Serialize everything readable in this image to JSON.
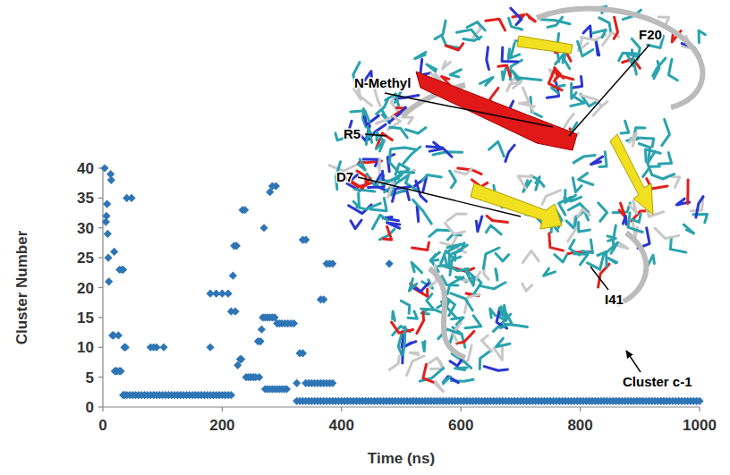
{
  "chart_data": {
    "type": "scatter",
    "x_label": "Time (ns)",
    "y_label": "Cluster Number",
    "color": "#2e75b6",
    "marker": "diamond",
    "grid": false,
    "xlim": [
      0,
      1000
    ],
    "xticks": [
      0,
      200,
      400,
      600,
      800,
      1000
    ],
    "ylim": [
      0,
      40
    ],
    "yticks": [
      0,
      5,
      10,
      15,
      20,
      25,
      30,
      35,
      40
    ],
    "annotations": [
      {
        "text": "N-Methyl"
      },
      {
        "text": "R5"
      },
      {
        "text": "D7"
      },
      {
        "text": "F20"
      },
      {
        "text": "I41"
      },
      {
        "text": "Cluster c-1"
      }
    ],
    "x": [
      3,
      5,
      6,
      7,
      8,
      9,
      10,
      13,
      14,
      16,
      18,
      19,
      20,
      22,
      24,
      26,
      28,
      28,
      30,
      32,
      34,
      36,
      38,
      40,
      48,
      34,
      36,
      40,
      45,
      50,
      55,
      60,
      65,
      70,
      75,
      80,
      85,
      90,
      95,
      100,
      105,
      110,
      115,
      120,
      125,
      130,
      135,
      140,
      145,
      150,
      155,
      160,
      165,
      170,
      175,
      180,
      185,
      190,
      195,
      200,
      205,
      210,
      215,
      80,
      85,
      90,
      102,
      180,
      180,
      190,
      200,
      210,
      215,
      218,
      220,
      224,
      222,
      226,
      230,
      232,
      234,
      238,
      240,
      244,
      248,
      252,
      256,
      260,
      264,
      262,
      266,
      270,
      268,
      272,
      276,
      280,
      284,
      288,
      272,
      276,
      280,
      284,
      288,
      292,
      296,
      300,
      304,
      308,
      280,
      284,
      290,
      292,
      296,
      300,
      305,
      310,
      315,
      320,
      325,
      330,
      335,
      335,
      340,
      340,
      345,
      350,
      355,
      360,
      365,
      365,
      370,
      370,
      375,
      380,
      375,
      380,
      385,
      385,
      480,
      325,
      330,
      335,
      340,
      345,
      350,
      355,
      360,
      365,
      370,
      375,
      380,
      385,
      390,
      395,
      400,
      405,
      410,
      415,
      420,
      425,
      430,
      435,
      440,
      445,
      450,
      455,
      460,
      465,
      470,
      475,
      480,
      485,
      490,
      495,
      500,
      505,
      510,
      515,
      520,
      525,
      530,
      535,
      540,
      545,
      550,
      555,
      560,
      565,
      570,
      575,
      580,
      585,
      590,
      595,
      600,
      605,
      610,
      615,
      620,
      625,
      630,
      635,
      640,
      645,
      650,
      655,
      660,
      665,
      670,
      675,
      680,
      685,
      690,
      695,
      700,
      705,
      710,
      715,
      720,
      725,
      730,
      735,
      740,
      745,
      750,
      755,
      760,
      765,
      770,
      775,
      780,
      785,
      790,
      795,
      800,
      805,
      810,
      815,
      820,
      825,
      830,
      835,
      840,
      845,
      850,
      855,
      860,
      865,
      870,
      875,
      880,
      885,
      890,
      895,
      900,
      905,
      910,
      915,
      920,
      925,
      930,
      935,
      940,
      945,
      950,
      955,
      960,
      965,
      970,
      975,
      980,
      985,
      990,
      995,
      1000
    ],
    "values": [
      40,
      31,
      32,
      34,
      29,
      25,
      21,
      39,
      38,
      12,
      12,
      26,
      6,
      6,
      6,
      12,
      6,
      23,
      6,
      23,
      23,
      10,
      10,
      35,
      35,
      2,
      2,
      2,
      2,
      2,
      2,
      2,
      2,
      2,
      2,
      2,
      2,
      2,
      2,
      2,
      2,
      2,
      2,
      2,
      2,
      2,
      2,
      2,
      2,
      2,
      2,
      2,
      2,
      2,
      2,
      2,
      2,
      2,
      2,
      2,
      2,
      2,
      2,
      10,
      10,
      10,
      10,
      10,
      19,
      19,
      19,
      19,
      16,
      22,
      27,
      27,
      16,
      7,
      8,
      8,
      33,
      33,
      5,
      5,
      5,
      5,
      5,
      11,
      11,
      5,
      13,
      30,
      15,
      15,
      15,
      15,
      15,
      15,
      3,
      3,
      3,
      3,
      3,
      3,
      3,
      3,
      3,
      3,
      36,
      37,
      37,
      14,
      14,
      14,
      14,
      14,
      14,
      14,
      4,
      9,
      9,
      28,
      28,
      4,
      4,
      4,
      4,
      4,
      4,
      18,
      18,
      4,
      4,
      4,
      24,
      24,
      24,
      4,
      24,
      1,
      1,
      1,
      1,
      1,
      1,
      1,
      1,
      1,
      1,
      1,
      1,
      1,
      1,
      1,
      1,
      1,
      1,
      1,
      1,
      1,
      1,
      1,
      1,
      1,
      1,
      1,
      1,
      1,
      1,
      1,
      1,
      1,
      1,
      1,
      1,
      1,
      1,
      1,
      1,
      1,
      1,
      1,
      1,
      1,
      1,
      1,
      1,
      1,
      1,
      1,
      1,
      1,
      1,
      1,
      1,
      1,
      1,
      1,
      1,
      1,
      1,
      1,
      1,
      1,
      1,
      1,
      1,
      1,
      1,
      1,
      1,
      1,
      1,
      1,
      1,
      1,
      1,
      1,
      1,
      1,
      1,
      1,
      1,
      1,
      1,
      1,
      1,
      1,
      1,
      1,
      1,
      1,
      1,
      1,
      1,
      1,
      1,
      1,
      1,
      1,
      1,
      1,
      1,
      1,
      1,
      1,
      1,
      1,
      1,
      1,
      1,
      1,
      1,
      1,
      1,
      1,
      1,
      1,
      1,
      1,
      1,
      1,
      1,
      1,
      1,
      1,
      1,
      1,
      1,
      1,
      1,
      1,
      1,
      1,
      1
    ]
  }
}
